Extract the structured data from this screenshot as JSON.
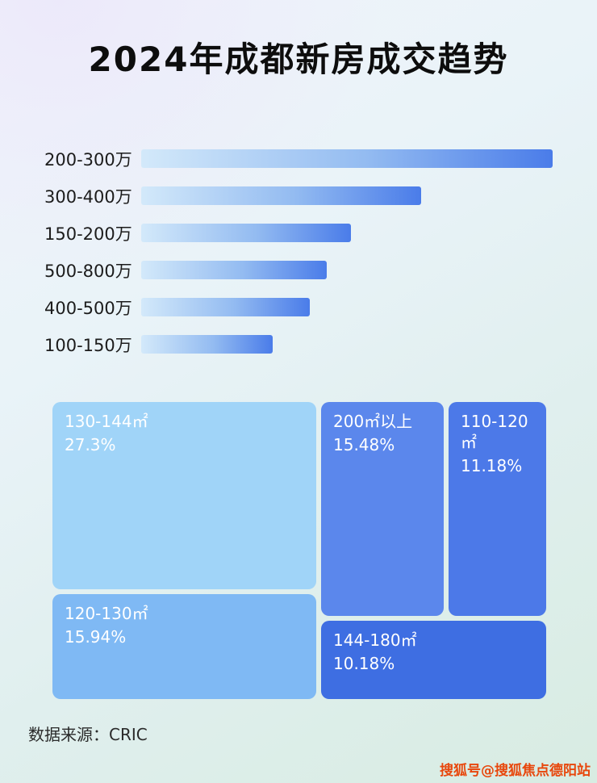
{
  "page": {
    "title": "2024年成都新房成交趋势",
    "source_label": "数据来源：CRIC",
    "watermark": "搜狐号@搜狐焦点德阳站"
  },
  "chart_data": [
    {
      "type": "bar",
      "orientation": "horizontal",
      "title": "2024年成都新房成交趋势",
      "categories": [
        "200-300万",
        "300-400万",
        "150-200万",
        "500-800万",
        "400-500万",
        "100-150万"
      ],
      "values": [
        100,
        68,
        51,
        45,
        41,
        32
      ],
      "value_unit": "relative bar length % of longest bar (no axis shown in image)",
      "xlabel": "",
      "ylabel": "",
      "grid": false,
      "legend": "none",
      "bar_colors": [
        "#d3e9fa",
        "#4a7ce9"
      ]
    },
    {
      "type": "treemap",
      "title": "",
      "items": [
        {
          "label": "130-144㎡",
          "value": 27.3,
          "display": "27.3%",
          "color": "#a0d4f8"
        },
        {
          "label": "200㎡以上",
          "value": 15.48,
          "display": "15.48%",
          "color": "#5b87ec"
        },
        {
          "label": "110-120㎡",
          "value": 11.18,
          "display": "11.18%",
          "color": "#4c79e8"
        },
        {
          "label": "120-130㎡",
          "value": 15.94,
          "display": "15.94%",
          "color": "#7fb9f4"
        },
        {
          "label": "144-180㎡",
          "value": 10.18,
          "display": "10.18%",
          "color": "#3e6ee2"
        }
      ]
    }
  ]
}
